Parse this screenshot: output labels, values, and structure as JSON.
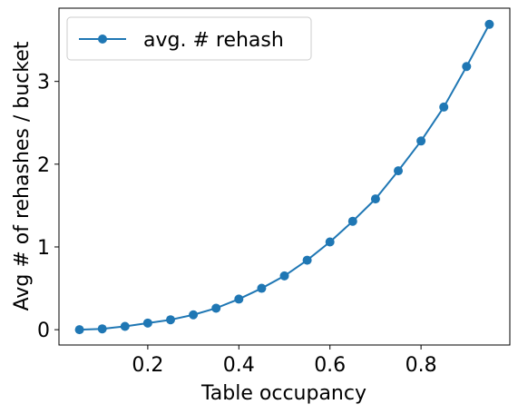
{
  "chart_data": {
    "type": "line",
    "title": "",
    "xlabel": "Table occupancy",
    "ylabel": "Avg # of rehashes / bucket",
    "xlim": [
      0.005,
      0.995
    ],
    "ylim": [
      -0.185,
      3.885
    ],
    "xticks": [
      0.2,
      0.4,
      0.6,
      0.8
    ],
    "xtick_labels": [
      "0.2",
      "0.4",
      "0.6",
      "0.8"
    ],
    "yticks": [
      0,
      1,
      2,
      3
    ],
    "ytick_labels": [
      "0",
      "1",
      "2",
      "3"
    ],
    "grid": false,
    "legend_position": "upper-left",
    "series": [
      {
        "name": "avg. # rehash",
        "color": "#1f77b4",
        "marker": "circle",
        "x": [
          0.05,
          0.1,
          0.15,
          0.2,
          0.25,
          0.3,
          0.35,
          0.4,
          0.45,
          0.5,
          0.55,
          0.6,
          0.65,
          0.7,
          0.75,
          0.8,
          0.85,
          0.9,
          0.95
        ],
        "y": [
          0.0,
          0.01,
          0.04,
          0.08,
          0.12,
          0.18,
          0.26,
          0.37,
          0.5,
          0.65,
          0.84,
          1.06,
          1.31,
          1.58,
          1.92,
          2.28,
          2.69,
          3.18,
          3.69
        ]
      }
    ]
  }
}
